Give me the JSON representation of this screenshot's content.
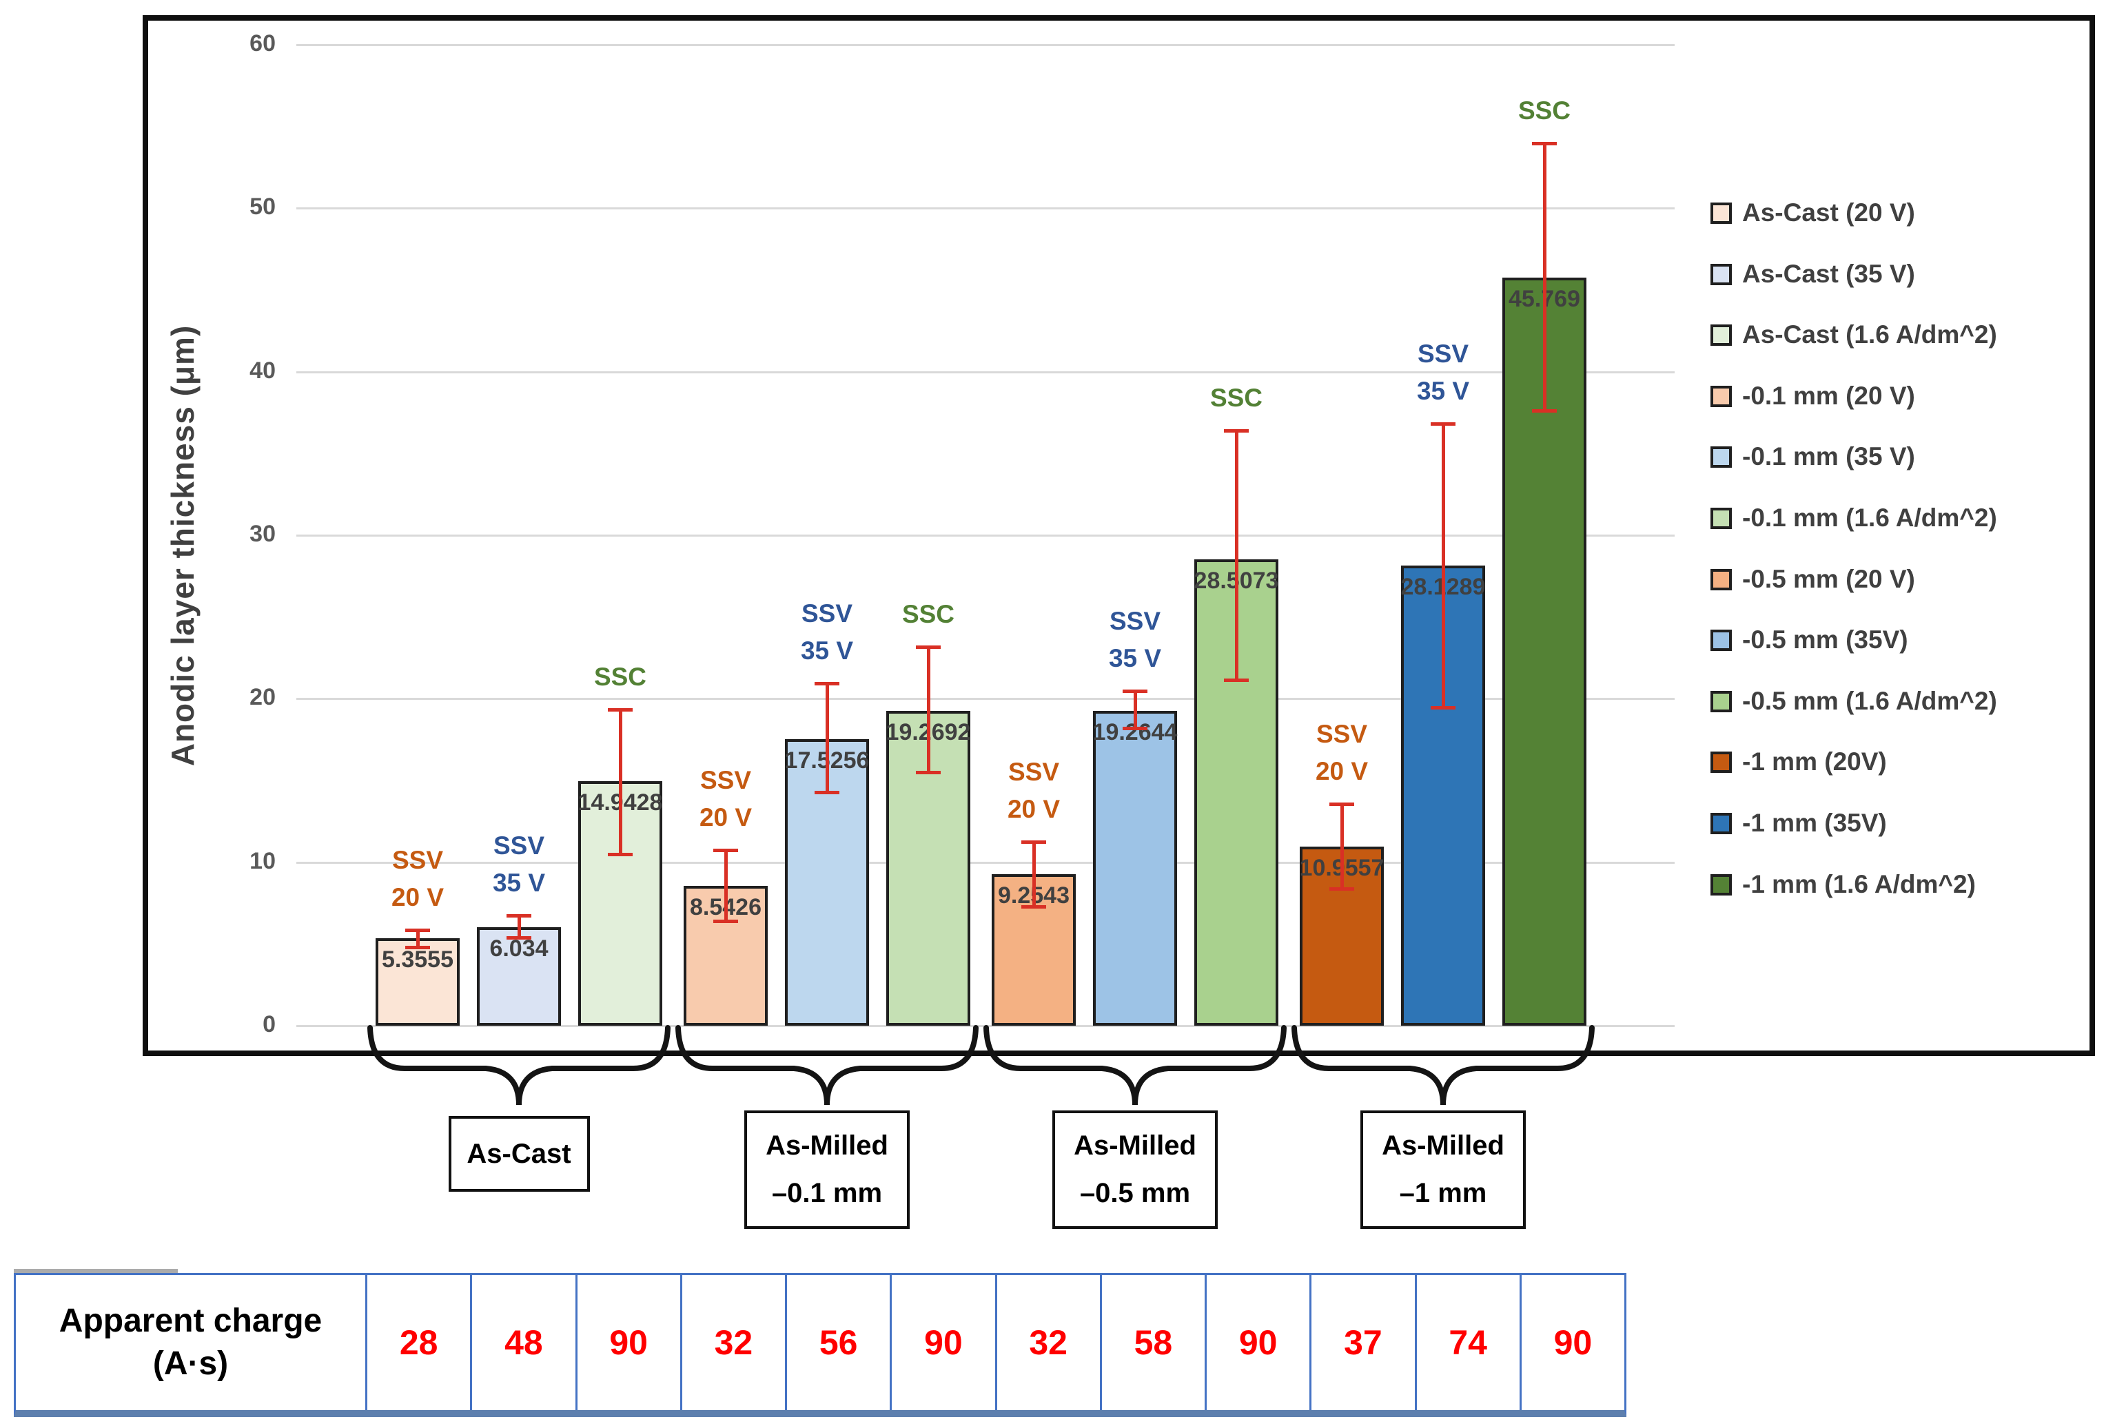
{
  "chart_data": {
    "type": "bar",
    "title": "",
    "xlabel": "",
    "ylabel": "Anodic layer thickness (μm)",
    "ylim": [
      0,
      60
    ],
    "yticks": [
      "0",
      "10",
      "20",
      "30",
      "40",
      "50",
      "60"
    ],
    "grid": true,
    "legend_position": "right",
    "annotation_colors": {
      "ssv20": "#c55a11",
      "ssv35": "#2f5597",
      "ssc": "#538135"
    },
    "error_bar_color": "#d93025",
    "groups": [
      {
        "name": "As-Cast",
        "box_lines": [
          "As-Cast"
        ],
        "bars": [
          {
            "series": "As-Cast (20 V)",
            "value": 5.3555,
            "label": "5.3555",
            "fill": "#fbe5d6",
            "annotation_lines": [
              "SSV",
              "20 V"
            ],
            "annotation_color_key": "ssv20",
            "err_plus": 0.5,
            "err_minus": 0.6
          },
          {
            "series": "As-Cast (35 V)",
            "value": 6.034,
            "label": "6.034",
            "fill": "#dae3f3",
            "annotation_lines": [
              "SSV",
              "35 V"
            ],
            "annotation_color_key": "ssv35",
            "err_plus": 0.7,
            "err_minus": 0.7
          },
          {
            "series": "As-Cast (1.6 A/dm^2)",
            "value": 14.9428,
            "label": "14.9428",
            "fill": "#e2efda",
            "annotation_lines": [
              "SSC"
            ],
            "annotation_color_key": "ssc",
            "err_plus": 4.4,
            "err_minus": 4.5
          }
        ]
      },
      {
        "name": "As-Milled −0.1 mm",
        "box_lines": [
          "As-Milled",
          "–0.1 mm"
        ],
        "bars": [
          {
            "series": "-0.1 mm (20 V)",
            "value": 8.5426,
            "label": "8.5426",
            "fill": "#f8cbad",
            "annotation_lines": [
              "SSV",
              "20 V"
            ],
            "annotation_color_key": "ssv20",
            "err_plus": 2.2,
            "err_minus": 2.2
          },
          {
            "series": "-0.1 mm (35 V)",
            "value": 17.5256,
            "label": "17.5256",
            "fill": "#bdd7ee",
            "annotation_lines": [
              "SSV",
              "35 V"
            ],
            "annotation_color_key": "ssv35",
            "err_plus": 3.4,
            "err_minus": 3.3
          },
          {
            "series": "-0.1 mm (1.6 A/dm^2)",
            "value": 19.2692,
            "label": "19.2692",
            "fill": "#c5e0b4",
            "annotation_lines": [
              "SSC"
            ],
            "annotation_color_key": "ssc",
            "err_plus": 3.9,
            "err_minus": 3.8
          }
        ]
      },
      {
        "name": "As-Milled −0.5 mm",
        "box_lines": [
          "As-Milled",
          "–0.5 mm"
        ],
        "bars": [
          {
            "series": "-0.5 mm (20 V)",
            "value": 9.2543,
            "label": "9.2543",
            "fill": "#f4b183",
            "annotation_lines": [
              "SSV",
              "20 V"
            ],
            "annotation_color_key": "ssv20",
            "err_plus": 2.0,
            "err_minus": 2.0
          },
          {
            "series": "-0.5 mm (35V)",
            "value": 19.2644,
            "label": "19.2644",
            "fill": "#9dc3e6",
            "annotation_lines": [
              "SSV",
              "35 V"
            ],
            "annotation_color_key": "ssv35",
            "err_plus": 1.2,
            "err_minus": 1.1
          },
          {
            "series": "-0.5 mm (1.6 A/dm^2)",
            "value": 28.5073,
            "label": "28.5073",
            "fill": "#a9d18e",
            "annotation_lines": [
              "SSC"
            ],
            "annotation_color_key": "ssc",
            "err_plus": 7.9,
            "err_minus": 7.4
          }
        ]
      },
      {
        "name": "As-Milled −1 mm",
        "box_lines": [
          "As-Milled",
          "–1 mm"
        ],
        "bars": [
          {
            "series": "-1 mm (20V)",
            "value": 10.9557,
            "label": "10.9557",
            "fill": "#c55a11",
            "annotation_lines": [
              "SSV",
              "20 V"
            ],
            "annotation_color_key": "ssv20",
            "err_plus": 2.6,
            "err_minus": 2.6
          },
          {
            "series": "-1 mm (35V)",
            "value": 28.1289,
            "label": "28.1289",
            "fill": "#2e75b6",
            "annotation_lines": [
              "SSV",
              "35 V"
            ],
            "annotation_color_key": "ssv35",
            "err_plus": 8.7,
            "err_minus": 8.7
          },
          {
            "series": "-1 mm (1.6 A/dm^2)",
            "value": 45.769,
            "label": "45.769",
            "fill": "#548235",
            "annotation_lines": [
              "SSC"
            ],
            "annotation_color_key": "ssc",
            "err_plus": 8.2,
            "err_minus": 8.2
          }
        ]
      }
    ]
  },
  "legend": {
    "items": [
      {
        "label": "As-Cast (20 V)",
        "color": "#fbe5d6"
      },
      {
        "label": "As-Cast (35 V)",
        "color": "#dae3f3"
      },
      {
        "label": "As-Cast (1.6 A/dm^2)",
        "color": "#e2efda"
      },
      {
        "label": "-0.1 mm (20 V)",
        "color": "#f8cbad"
      },
      {
        "label": "-0.1 mm (35 V)",
        "color": "#bdd7ee"
      },
      {
        "label": "-0.1 mm (1.6 A/dm^2)",
        "color": "#c5e0b4"
      },
      {
        "label": "-0.5 mm (20 V)",
        "color": "#f4b183"
      },
      {
        "label": "-0.5 mm (35V)",
        "color": "#9dc3e6"
      },
      {
        "label": "-0.5 mm (1.6 A/dm^2)",
        "color": "#a9d18e"
      },
      {
        "label": "-1 mm (20V)",
        "color": "#c55a11"
      },
      {
        "label": "-1 mm (35V)",
        "color": "#2e75b6"
      },
      {
        "label": "-1 mm (1.6 A/dm^2)",
        "color": "#548235"
      }
    ]
  },
  "charge_table": {
    "header_lines": [
      "Apparent charge",
      "(A·s)"
    ],
    "values": [
      "28",
      "48",
      "90",
      "32",
      "56",
      "90",
      "32",
      "58",
      "90",
      "37",
      "74",
      "90"
    ],
    "value_color": "#ff0000",
    "border_color": "#4472c4"
  }
}
